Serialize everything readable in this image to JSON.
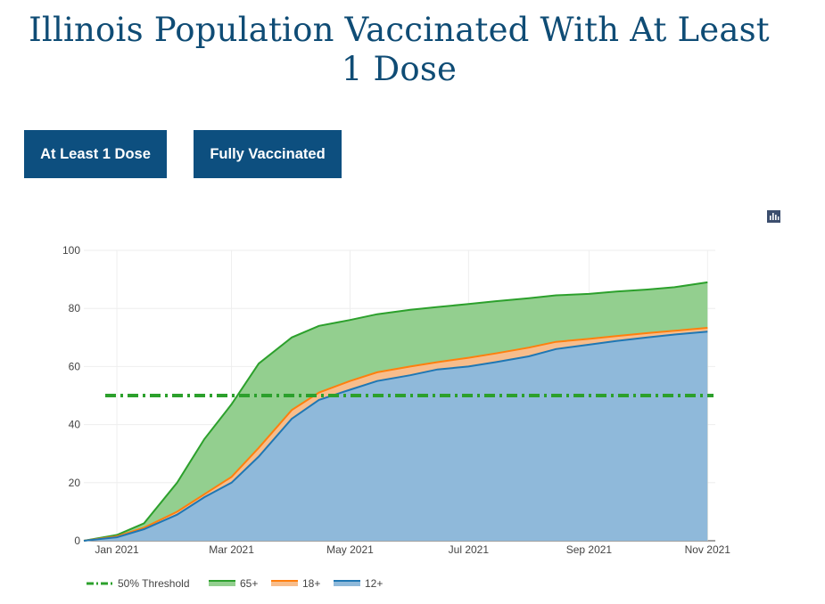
{
  "title": "Illinois Population Vaccinated With At Least 1 Dose",
  "title_lines": [
    "Illinois Population Vaccinated With At Least",
    "1 Dose"
  ],
  "tabs": [
    {
      "label": "At Least 1 Dose",
      "active": true
    },
    {
      "label": "Fully Vaccinated",
      "active": false
    }
  ],
  "toolbar": {
    "icon": "bar-chart-icon"
  },
  "colors": {
    "tab_bg": "#0d4f7f",
    "title": "#0f4c75",
    "green_line": "#2ca02c",
    "green_fill": "#93cf8f",
    "orange_line": "#ff7f0e",
    "orange_fill": "#f7bd8c",
    "blue_line": "#1f77b4",
    "blue_fill": "#8fb9da",
    "threshold": "#2ca02c"
  },
  "chart_data": {
    "type": "area",
    "x_ticks": [
      "Jan 2021",
      "Mar 2021",
      "May 2021",
      "Jul 2021",
      "Sep 2021",
      "Nov 2021"
    ],
    "y_ticks": [
      0,
      20,
      40,
      60,
      80,
      100
    ],
    "ylim": [
      0,
      100
    ],
    "xlim": [
      "2020-12-15",
      "2021-11-05"
    ],
    "grid": true,
    "legend_position": "bottom-left",
    "threshold": {
      "name": "50% Threshold",
      "value": 50
    },
    "x": [
      "2020-12-15",
      "2021-01-01",
      "2021-01-15",
      "2021-02-01",
      "2021-02-15",
      "2021-03-01",
      "2021-03-15",
      "2021-04-01",
      "2021-04-15",
      "2021-05-01",
      "2021-05-15",
      "2021-06-01",
      "2021-06-15",
      "2021-07-01",
      "2021-07-15",
      "2021-08-01",
      "2021-08-15",
      "2021-09-01",
      "2021-09-15",
      "2021-10-01",
      "2021-10-15",
      "2021-11-01"
    ],
    "series": [
      {
        "name": "65+",
        "values": [
          0,
          2,
          6,
          20,
          35,
          47,
          61,
          70,
          74,
          76,
          78,
          79.5,
          80.5,
          81.5,
          82.5,
          83.5,
          84.5,
          85,
          85.8,
          86.5,
          87.3,
          89
        ]
      },
      {
        "name": "18+",
        "values": [
          0,
          1.5,
          4.5,
          10,
          16,
          22,
          32,
          45,
          51,
          55,
          58,
          60,
          61.5,
          63,
          64.5,
          66.5,
          68.5,
          69.5,
          70.5,
          71.5,
          72.3,
          73.3
        ]
      },
      {
        "name": "12+",
        "values": [
          0,
          1.2,
          4,
          9,
          15,
          20,
          29,
          42,
          48.5,
          52,
          55,
          57,
          59,
          60,
          61.5,
          63.5,
          66,
          67.5,
          68.8,
          70,
          71,
          72
        ]
      }
    ]
  }
}
